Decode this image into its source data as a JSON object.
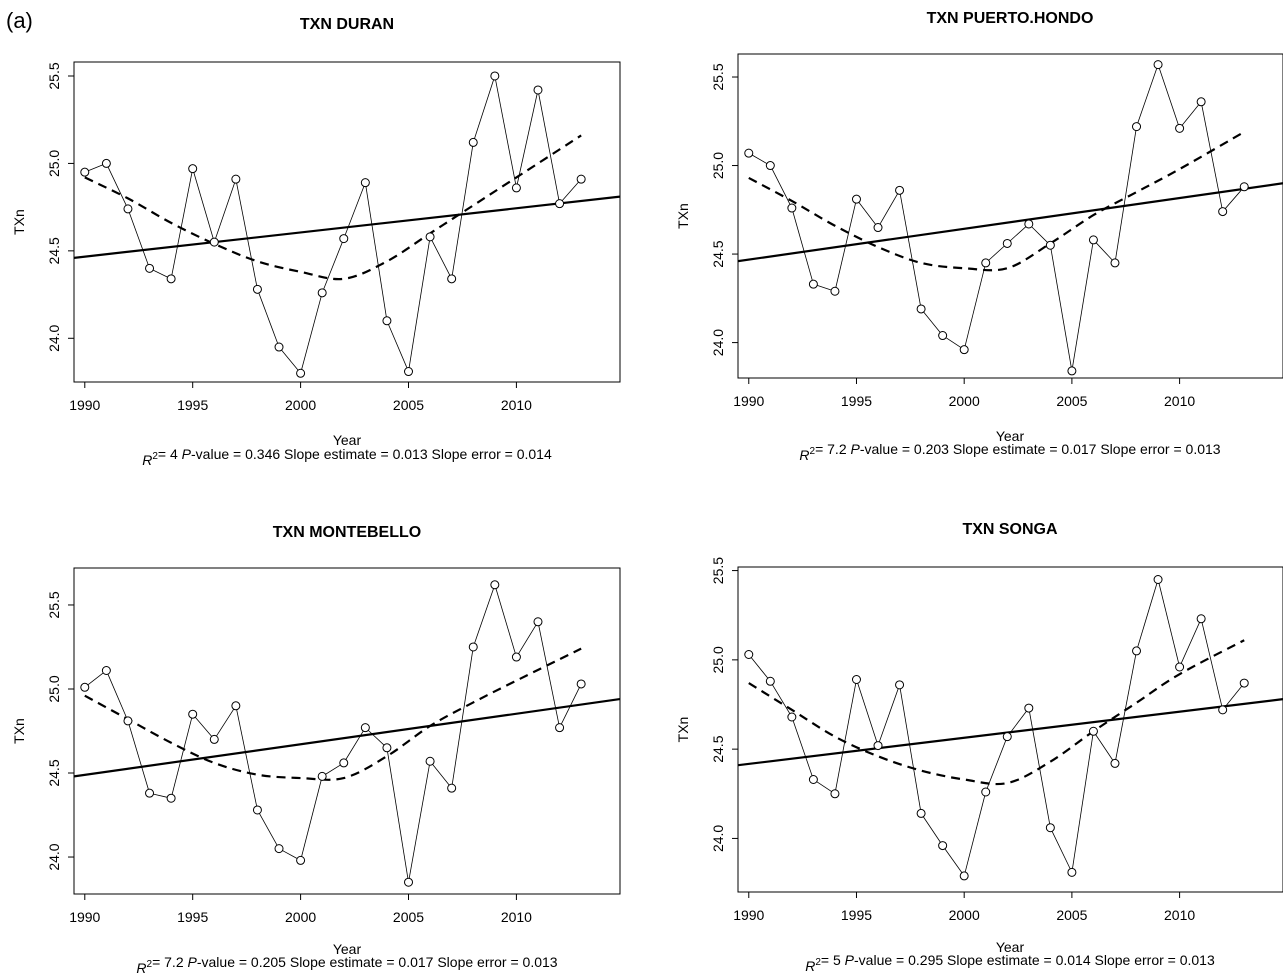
{
  "figure_label": "(a)",
  "chart_data": [
    {
      "type": "line",
      "title": "TXN   DURAN",
      "xlabel": "Year",
      "ylabel": "TXn",
      "x_ticks": [
        1990,
        1995,
        2000,
        2005,
        2010
      ],
      "y_ticks": [
        "24.0",
        "24.5",
        "25.0",
        "25.5"
      ],
      "xlim": [
        1989.5,
        2014.8
      ],
      "ylim": [
        23.75,
        25.58
      ],
      "x": [
        1990,
        1991,
        1992,
        1993,
        1994,
        1995,
        1996,
        1997,
        1998,
        1999,
        2000,
        2001,
        2002,
        2003,
        2004,
        2005,
        2006,
        2007,
        2008,
        2009,
        2010,
        2011,
        2012,
        2013
      ],
      "values": [
        24.95,
        25.0,
        24.74,
        24.4,
        24.34,
        24.97,
        24.55,
        24.91,
        24.28,
        23.95,
        23.8,
        24.26,
        24.57,
        24.89,
        24.1,
        23.81,
        24.58,
        24.34,
        25.12,
        25.5,
        24.86,
        25.42,
        24.77,
        24.91
      ],
      "trend": {
        "x": [
          1989.5,
          2014.8
        ],
        "y": [
          24.46,
          24.81
        ]
      },
      "smooth": {
        "x": [
          1990,
          1992,
          1994,
          1996,
          1998,
          2000,
          2002,
          2004,
          2006,
          2008,
          2010,
          2013
        ],
        "y": [
          24.92,
          24.8,
          24.66,
          24.54,
          24.44,
          24.38,
          24.34,
          24.44,
          24.6,
          24.76,
          24.92,
          25.16
        ]
      },
      "stats": {
        "r2": "4",
        "p": "0.346",
        "slope": "0.013",
        "error": "0.014"
      }
    },
    {
      "type": "line",
      "title": "TXN   PUERTO.HONDO",
      "xlabel": "Year",
      "ylabel": "TXn",
      "x_ticks": [
        1990,
        1995,
        2000,
        2005,
        2010
      ],
      "y_ticks": [
        "24.0",
        "24.5",
        "25.0",
        "25.5"
      ],
      "xlim": [
        1989.5,
        2014.8
      ],
      "ylim": [
        23.8,
        25.63
      ],
      "x": [
        1990,
        1991,
        1992,
        1993,
        1994,
        1995,
        1996,
        1997,
        1998,
        1999,
        2000,
        2001,
        2002,
        2003,
        2004,
        2005,
        2006,
        2007,
        2008,
        2009,
        2010,
        2011,
        2012,
        2013
      ],
      "values": [
        25.07,
        25.0,
        24.76,
        24.33,
        24.29,
        24.81,
        24.65,
        24.86,
        24.19,
        24.04,
        23.96,
        24.45,
        24.56,
        24.67,
        24.55,
        23.84,
        24.58,
        24.45,
        25.22,
        25.57,
        25.21,
        25.36,
        24.74,
        24.88
      ],
      "trend": {
        "x": [
          1989.5,
          2014.8
        ],
        "y": [
          24.46,
          24.9
        ]
      },
      "smooth": {
        "x": [
          1990,
          1992,
          1994,
          1996,
          1998,
          2000,
          2002,
          2004,
          2006,
          2008,
          2010,
          2013
        ],
        "y": [
          24.93,
          24.8,
          24.66,
          24.54,
          24.45,
          24.42,
          24.42,
          24.56,
          24.72,
          24.85,
          24.98,
          25.19
        ]
      },
      "stats": {
        "r2": "7.2",
        "p": "0.203",
        "slope": "0.017",
        "error": "0.013"
      }
    },
    {
      "type": "line",
      "title": "TXN   MONTEBELLO",
      "xlabel": "Year",
      "ylabel": "TXn",
      "x_ticks": [
        1990,
        1995,
        2000,
        2005,
        2010
      ],
      "y_ticks": [
        "24.0",
        "24.5",
        "25.0",
        "25.5"
      ],
      "xlim": [
        1989.5,
        2014.8
      ],
      "ylim": [
        23.78,
        25.72
      ],
      "x": [
        1990,
        1991,
        1992,
        1993,
        1994,
        1995,
        1996,
        1997,
        1998,
        1999,
        2000,
        2001,
        2002,
        2003,
        2004,
        2005,
        2006,
        2007,
        2008,
        2009,
        2010,
        2011,
        2012,
        2013
      ],
      "values": [
        25.01,
        25.11,
        24.81,
        24.38,
        24.35,
        24.85,
        24.7,
        24.9,
        24.28,
        24.05,
        23.98,
        24.48,
        24.56,
        24.77,
        24.65,
        23.85,
        24.57,
        24.41,
        25.25,
        25.62,
        25.19,
        25.4,
        24.77,
        25.03
      ],
      "trend": {
        "x": [
          1989.5,
          2014.8
        ],
        "y": [
          24.48,
          24.94
        ]
      },
      "smooth": {
        "x": [
          1990,
          1992,
          1994,
          1996,
          1998,
          2000,
          2002,
          2004,
          2006,
          2008,
          2010,
          2013
        ],
        "y": [
          24.96,
          24.82,
          24.68,
          24.56,
          24.49,
          24.47,
          24.47,
          24.6,
          24.78,
          24.92,
          25.05,
          25.24
        ]
      },
      "stats": {
        "r2": "7.2",
        "p": "0.205",
        "slope": "0.017",
        "error": "0.013"
      }
    },
    {
      "type": "line",
      "title": "TXN   SONGA",
      "xlabel": "Year",
      "ylabel": "TXn",
      "x_ticks": [
        1990,
        1995,
        2000,
        2005,
        2010
      ],
      "y_ticks": [
        "24.0",
        "24.5",
        "25.0",
        "25.5"
      ],
      "xlim": [
        1989.5,
        2014.8
      ],
      "ylim": [
        23.7,
        25.52
      ],
      "x": [
        1990,
        1991,
        1992,
        1993,
        1994,
        1995,
        1996,
        1997,
        1998,
        1999,
        2000,
        2001,
        2002,
        2003,
        2004,
        2005,
        2006,
        2007,
        2008,
        2009,
        2010,
        2011,
        2012,
        2013
      ],
      "values": [
        25.03,
        24.88,
        24.68,
        24.33,
        24.25,
        24.89,
        24.52,
        24.86,
        24.14,
        23.96,
        23.79,
        24.26,
        24.57,
        24.73,
        24.06,
        23.81,
        24.6,
        24.42,
        25.05,
        25.45,
        24.96,
        25.23,
        24.72,
        24.87
      ],
      "trend": {
        "x": [
          1989.5,
          2014.8
        ],
        "y": [
          24.41,
          24.78
        ]
      },
      "smooth": {
        "x": [
          1990,
          1992,
          1994,
          1996,
          1998,
          2000,
          2002,
          2004,
          2006,
          2008,
          2010,
          2013
        ],
        "y": [
          24.87,
          24.72,
          24.57,
          24.46,
          24.38,
          24.33,
          24.31,
          24.43,
          24.6,
          24.76,
          24.92,
          25.11
        ]
      },
      "stats": {
        "r2": "5",
        "p": "0.295",
        "slope": "0.014",
        "error": "0.013"
      }
    }
  ]
}
